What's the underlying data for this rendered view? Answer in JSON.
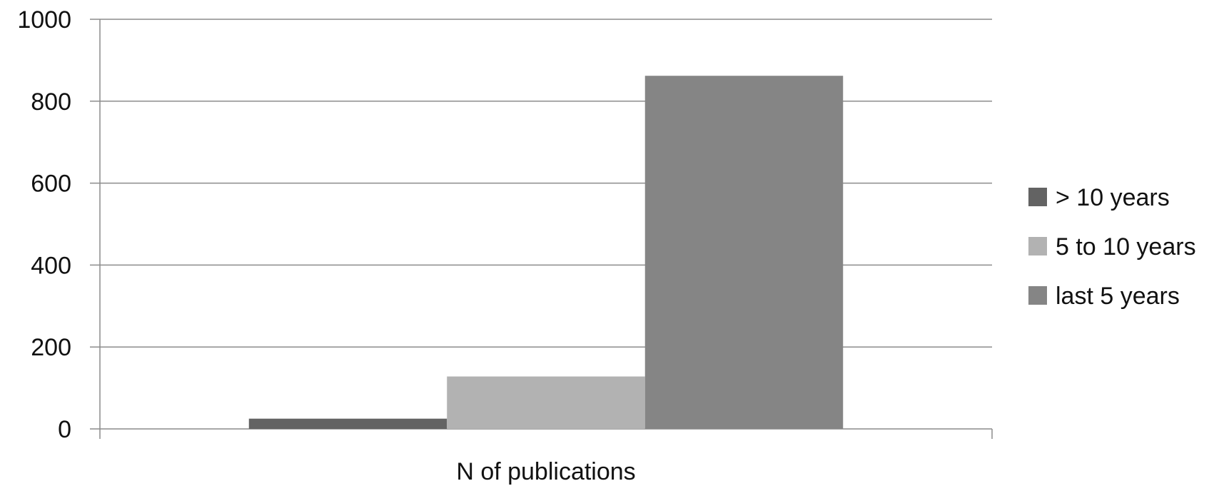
{
  "chart_data": {
    "type": "bar",
    "categories": [
      "N of publications"
    ],
    "series": [
      {
        "name": "> 10 years",
        "values": [
          25
        ],
        "color": "#636363"
      },
      {
        "name": "5 to 10 years",
        "values": [
          128
        ],
        "color": "#b2b2b2"
      },
      {
        "name": "last 5 years",
        "values": [
          862
        ],
        "color": "#858585"
      }
    ],
    "title": "",
    "xlabel": "",
    "ylabel": "",
    "ylim": [
      0,
      1000
    ],
    "yticks": [
      0,
      200,
      400,
      600,
      800,
      1000
    ],
    "grid": true,
    "legend": "right"
  }
}
